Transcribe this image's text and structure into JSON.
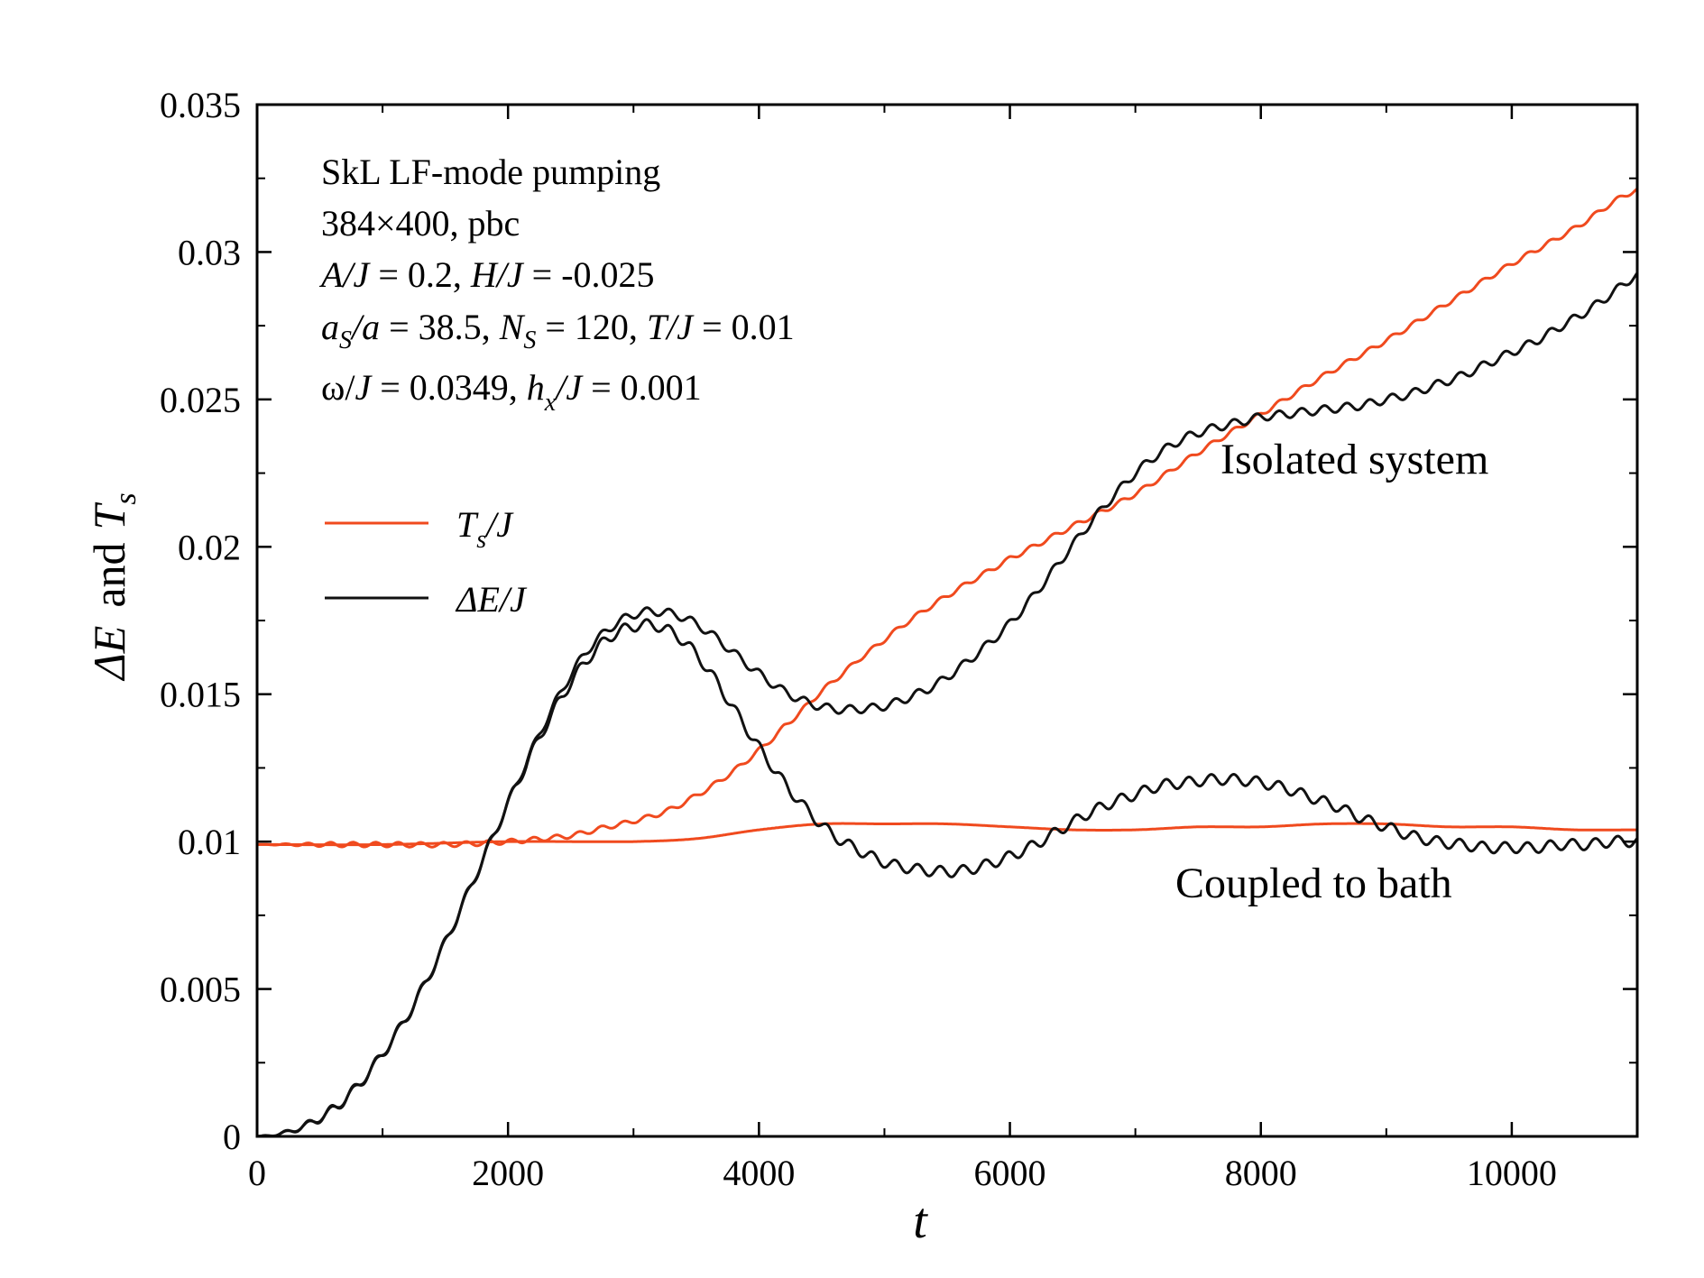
{
  "chart_data": {
    "type": "line",
    "xlabel": "t",
    "ylabel": {
      "prefix": "ΔE",
      "mid": "and",
      "sym": "T",
      "sub": "s"
    },
    "xlim": [
      0,
      11000
    ],
    "ylim": [
      0,
      0.035
    ],
    "x_ticks": [
      0,
      2000,
      4000,
      6000,
      8000,
      10000
    ],
    "x_tick_labels": [
      "0",
      "2000",
      "4000",
      "6000",
      "8000",
      "10000"
    ],
    "y_ticks": [
      0,
      0.005,
      0.01,
      0.015,
      0.02,
      0.025,
      0.03,
      0.035
    ],
    "y_tick_labels": [
      "0",
      "0.005",
      "0.01",
      "0.015",
      "0.02",
      "0.025",
      "0.03",
      "0.035"
    ],
    "colors": {
      "ts": "#f04a1e",
      "de": "#111111",
      "frame": "#000000"
    },
    "annotations": {
      "line1": "SkL LF-mode pumping",
      "line2": "384×400, pbc",
      "line3": {
        "a_sym": "A/J",
        "a_val": " = 0.2, ",
        "h_sym": "H/J",
        "h_val": " = -0.025"
      },
      "line4": {
        "as_sym": "a",
        "as_sub": "S",
        "as_rest": "/a",
        "as_val": " = 38.5, ",
        "ns_sym": "N",
        "ns_sub": "S",
        "ns_val": " = 120, ",
        "t_sym": "T/J",
        "t_val": " = 0.01"
      },
      "line5": {
        "w_sym": "ω/",
        "w_j": "J",
        "w_val": " = 0.0349, ",
        "hx_sym": "h",
        "hx_sub": "x",
        "hx_rest": "/J",
        "hx_val": " = 0.001"
      },
      "isolated": "Isolated system",
      "coupled": "Coupled to bath"
    },
    "legend": {
      "placement": "middle-left",
      "entries": [
        {
          "sym": "T",
          "sub": "s",
          "rest": "/J",
          "color": "#f04a1e"
        },
        {
          "sym": "ΔE/J",
          "color": "#111111"
        }
      ]
    },
    "series": [
      {
        "name": "T_s/J isolated system",
        "color": "#f04a1e",
        "wiggle": 8e-05,
        "x": [
          0,
          500,
          1000,
          1500,
          2000,
          2500,
          2800,
          3000,
          3300,
          3600,
          3800,
          4000,
          4200,
          4500,
          4800,
          5200,
          5600,
          6000,
          6500,
          7000,
          7500,
          8000,
          8500,
          9000,
          9500,
          10000,
          10500,
          11000
        ],
        "y": [
          0.0099,
          0.0099,
          0.0099,
          0.0099,
          0.01,
          0.0102,
          0.0105,
          0.0107,
          0.0111,
          0.0118,
          0.0124,
          0.0131,
          0.0139,
          0.0151,
          0.0162,
          0.0175,
          0.0186,
          0.0196,
          0.0207,
          0.0218,
          0.0232,
          0.0245,
          0.0258,
          0.027,
          0.0283,
          0.0296,
          0.0308,
          0.0321
        ]
      },
      {
        "name": "ΔE/J isolated system",
        "color": "#111111",
        "wiggle": 0.00014,
        "x": [
          0,
          200,
          400,
          600,
          800,
          1000,
          1200,
          1400,
          1600,
          1800,
          2000,
          2200,
          2400,
          2600,
          2800,
          3000,
          3200,
          3400,
          3600,
          3800,
          4000,
          4200,
          4400,
          4600,
          4800,
          5000,
          5200,
          5400,
          5600,
          5800,
          6000,
          6200,
          6400,
          6600,
          6800,
          7000,
          7200,
          7400,
          7600,
          7800,
          8000,
          8200,
          8400,
          8600,
          8800,
          9000,
          9200,
          9400,
          9600,
          9800,
          10000,
          10200,
          10400,
          10600,
          10800,
          11000
        ],
        "y": [
          0.0,
          0.0001,
          0.0004,
          0.0009,
          0.0017,
          0.0028,
          0.0041,
          0.0057,
          0.0075,
          0.0094,
          0.0113,
          0.0132,
          0.0149,
          0.0163,
          0.0172,
          0.0177,
          0.0178,
          0.0176,
          0.0171,
          0.0164,
          0.0157,
          0.0151,
          0.0147,
          0.0145,
          0.0145,
          0.0146,
          0.0149,
          0.0153,
          0.0159,
          0.0166,
          0.0174,
          0.0184,
          0.0195,
          0.0206,
          0.0216,
          0.0225,
          0.0232,
          0.0237,
          0.024,
          0.0242,
          0.0244,
          0.0245,
          0.0246,
          0.0247,
          0.0248,
          0.025,
          0.0252,
          0.0255,
          0.0258,
          0.0262,
          0.0266,
          0.027,
          0.0275,
          0.028,
          0.0286,
          0.0292
        ]
      },
      {
        "name": "T_s/J coupled to bath",
        "color": "#f04a1e",
        "wiggle": 0.0,
        "x": [
          0,
          1000,
          2000,
          3000,
          3500,
          4000,
          4500,
          5000,
          5500,
          6000,
          6500,
          7000,
          7500,
          8000,
          8500,
          9000,
          9500,
          10000,
          10500,
          11000
        ],
        "y": [
          0.0099,
          0.0099,
          0.01,
          0.01,
          0.0101,
          0.0104,
          0.0106,
          0.0106,
          0.0106,
          0.0105,
          0.0104,
          0.0104,
          0.0105,
          0.0105,
          0.0106,
          0.0106,
          0.0105,
          0.0105,
          0.0104,
          0.0104
        ]
      },
      {
        "name": "ΔE/J coupled to bath",
        "color": "#111111",
        "wiggle": 0.00018,
        "x": [
          0,
          200,
          400,
          600,
          800,
          1000,
          1200,
          1400,
          1600,
          1800,
          2000,
          2200,
          2400,
          2600,
          2800,
          3000,
          3200,
          3400,
          3600,
          3800,
          4000,
          4200,
          4400,
          4600,
          4800,
          5000,
          5200,
          5400,
          5600,
          5800,
          6000,
          6200,
          6400,
          6600,
          6800,
          7000,
          7200,
          7400,
          7600,
          7800,
          8000,
          8200,
          8400,
          8600,
          8800,
          9000,
          9200,
          9400,
          9600,
          9800,
          10000,
          10200,
          10400,
          10600,
          10800,
          11000
        ],
        "y": [
          0.0,
          0.0001,
          0.0004,
          0.0009,
          0.0017,
          0.0028,
          0.0041,
          0.0057,
          0.0075,
          0.0094,
          0.0113,
          0.0131,
          0.0147,
          0.016,
          0.0169,
          0.0173,
          0.0173,
          0.0168,
          0.0158,
          0.0145,
          0.0132,
          0.012,
          0.011,
          0.0102,
          0.0097,
          0.0093,
          0.0091,
          0.009,
          0.009,
          0.0092,
          0.0095,
          0.0099,
          0.0104,
          0.0109,
          0.0113,
          0.0116,
          0.0119,
          0.012,
          0.0121,
          0.0121,
          0.012,
          0.0118,
          0.0115,
          0.0112,
          0.0108,
          0.0105,
          0.0102,
          0.01,
          0.0099,
          0.0098,
          0.0098,
          0.0098,
          0.0099,
          0.0099,
          0.01,
          0.01
        ]
      }
    ]
  }
}
